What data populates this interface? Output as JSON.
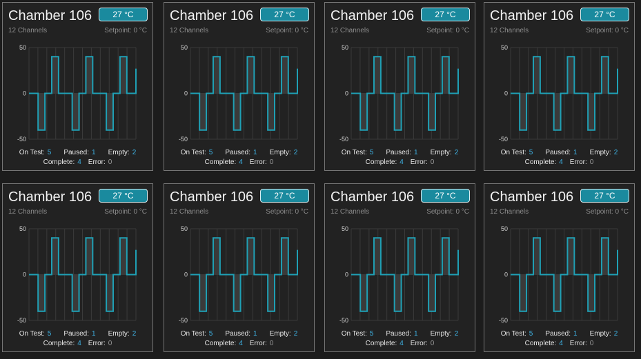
{
  "chart_data": {
    "type": "line",
    "x": [
      0,
      1,
      2,
      3,
      4,
      5,
      6,
      7,
      8,
      9,
      10,
      11,
      12,
      13,
      14,
      15,
      16,
      17,
      18,
      19,
      20,
      21,
      22,
      23,
      24,
      25,
      26,
      27,
      28,
      29,
      30,
      31,
      32,
      33,
      34,
      35,
      36,
      37,
      38,
      39,
      40,
      41,
      42,
      43,
      44,
      45,
      46,
      47
    ],
    "series": [
      {
        "values": [
          0,
          0,
          0,
          0,
          -40,
          -40,
          -40,
          0,
          0,
          0,
          40,
          40,
          40,
          0,
          0,
          0,
          0,
          0,
          0,
          -40,
          -40,
          -40,
          0,
          0,
          0,
          40,
          40,
          40,
          0,
          0,
          0,
          0,
          0,
          0,
          -40,
          -40,
          -40,
          0,
          0,
          0,
          40,
          40,
          40,
          0,
          0,
          0,
          0,
          27
        ]
      }
    ],
    "ylim": [
      -50,
      50
    ],
    "yticks": [
      "50",
      "0",
      "-50"
    ],
    "grid": true,
    "line_color": "#1fa0b5",
    "fill_color": "#3a3a3a"
  },
  "chambers": [
    {
      "name": "Chamber 106",
      "temperature": "27 °C",
      "channels": "12 Channels",
      "setpoint": "Setpoint: 0 °C",
      "stats": {
        "on_test_label": "On Test:",
        "on_test": "5",
        "paused_label": "Paused:",
        "paused": "1",
        "empty_label": "Empty:",
        "empty": "2",
        "complete_label": "Complete:",
        "complete": "4",
        "error_label": "Error:",
        "error": "0"
      }
    },
    {
      "name": "Chamber 106",
      "temperature": "27 °C",
      "channels": "12 Channels",
      "setpoint": "Setpoint: 0 °C",
      "stats": {
        "on_test_label": "On Test:",
        "on_test": "5",
        "paused_label": "Paused:",
        "paused": "1",
        "empty_label": "Empty:",
        "empty": "2",
        "complete_label": "Complete:",
        "complete": "4",
        "error_label": "Error:",
        "error": "0"
      }
    },
    {
      "name": "Chamber 106",
      "temperature": "27 °C",
      "channels": "12 Channels",
      "setpoint": "Setpoint: 0 °C",
      "stats": {
        "on_test_label": "On Test:",
        "on_test": "5",
        "paused_label": "Paused:",
        "paused": "1",
        "empty_label": "Empty:",
        "empty": "2",
        "complete_label": "Complete:",
        "complete": "4",
        "error_label": "Error:",
        "error": "0"
      }
    },
    {
      "name": "Chamber 106",
      "temperature": "27 °C",
      "channels": "12 Channels",
      "setpoint": "Setpoint: 0 °C",
      "stats": {
        "on_test_label": "On Test:",
        "on_test": "5",
        "paused_label": "Paused:",
        "paused": "1",
        "empty_label": "Empty:",
        "empty": "2",
        "complete_label": "Complete:",
        "complete": "4",
        "error_label": "Error:",
        "error": "0"
      }
    },
    {
      "name": "Chamber 106",
      "temperature": "27 °C",
      "channels": "12 Channels",
      "setpoint": "Setpoint: 0 °C",
      "stats": {
        "on_test_label": "On Test:",
        "on_test": "5",
        "paused_label": "Paused:",
        "paused": "1",
        "empty_label": "Empty:",
        "empty": "2",
        "complete_label": "Complete:",
        "complete": "4",
        "error_label": "Error:",
        "error": "0"
      }
    },
    {
      "name": "Chamber 106",
      "temperature": "27 °C",
      "channels": "12 Channels",
      "setpoint": "Setpoint: 0 °C",
      "stats": {
        "on_test_label": "On Test:",
        "on_test": "5",
        "paused_label": "Paused:",
        "paused": "1",
        "empty_label": "Empty:",
        "empty": "2",
        "complete_label": "Complete:",
        "complete": "4",
        "error_label": "Error:",
        "error": "0"
      }
    },
    {
      "name": "Chamber 106",
      "temperature": "27 °C",
      "channels": "12 Channels",
      "setpoint": "Setpoint: 0 °C",
      "stats": {
        "on_test_label": "On Test:",
        "on_test": "5",
        "paused_label": "Paused:",
        "paused": "1",
        "empty_label": "Empty:",
        "empty": "2",
        "complete_label": "Complete:",
        "complete": "4",
        "error_label": "Error:",
        "error": "0"
      }
    },
    {
      "name": "Chamber 106",
      "temperature": "27 °C",
      "channels": "12 Channels",
      "setpoint": "Setpoint: 0 °C",
      "stats": {
        "on_test_label": "On Test:",
        "on_test": "5",
        "paused_label": "Paused:",
        "paused": "1",
        "empty_label": "Empty:",
        "empty": "2",
        "complete_label": "Complete:",
        "complete": "4",
        "error_label": "Error:",
        "error": "0"
      }
    }
  ]
}
